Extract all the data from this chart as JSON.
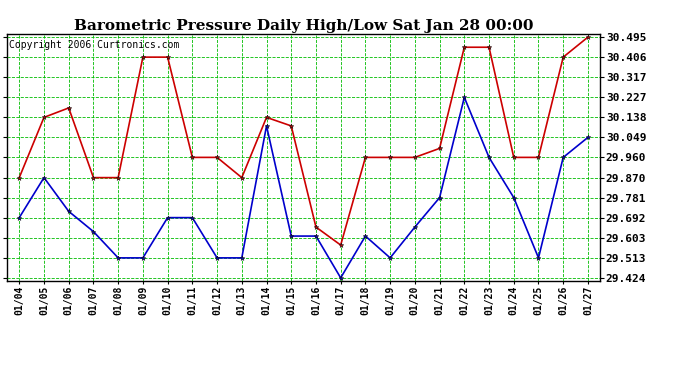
{
  "title": "Barometric Pressure Daily High/Low Sat Jan 28 00:00",
  "copyright": "Copyright 2006 Curtronics.com",
  "dates": [
    "01/04",
    "01/05",
    "01/06",
    "01/07",
    "01/08",
    "01/09",
    "01/10",
    "01/11",
    "01/12",
    "01/13",
    "01/14",
    "01/15",
    "01/16",
    "01/17",
    "01/18",
    "01/19",
    "01/20",
    "01/21",
    "01/22",
    "01/23",
    "01/24",
    "01/25",
    "01/26",
    "01/27"
  ],
  "high": [
    29.87,
    30.138,
    30.18,
    29.87,
    29.87,
    30.406,
    30.406,
    29.96,
    29.96,
    29.87,
    30.138,
    30.1,
    29.65,
    29.57,
    29.96,
    29.96,
    29.96,
    30.0,
    30.45,
    30.45,
    29.96,
    29.96,
    30.406,
    30.495
  ],
  "low": [
    29.692,
    29.87,
    29.72,
    29.63,
    29.513,
    29.513,
    29.692,
    29.692,
    29.513,
    29.513,
    30.1,
    29.61,
    29.61,
    29.424,
    29.61,
    29.513,
    29.65,
    29.781,
    30.227,
    29.96,
    29.781,
    29.513,
    29.96,
    30.049
  ],
  "high_color": "#cc0000",
  "low_color": "#0000cc",
  "marker": "*",
  "bg_color": "#ffffff",
  "grid_color": "#00bb00",
  "yticks": [
    29.424,
    29.513,
    29.603,
    29.692,
    29.781,
    29.87,
    29.96,
    30.049,
    30.138,
    30.227,
    30.317,
    30.406,
    30.495
  ],
  "title_fontsize": 11,
  "xtick_fontsize": 7,
  "ytick_fontsize": 8,
  "copyright_fontsize": 7
}
